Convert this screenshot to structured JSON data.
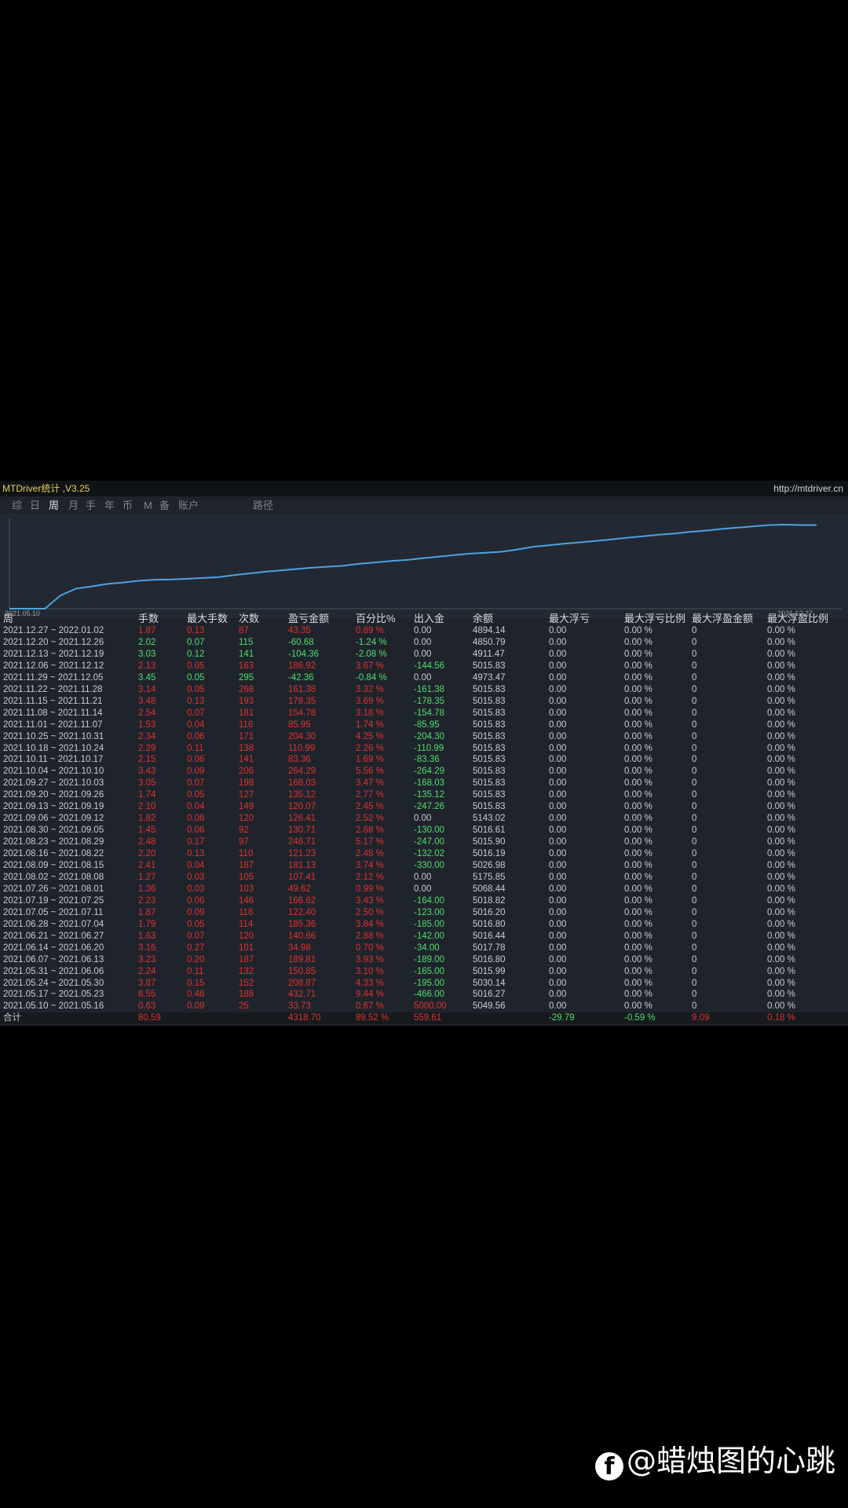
{
  "window": {
    "title": "MTDriver统计 ,V3.25",
    "url": "http://mtdriver.cn"
  },
  "tabs": [
    {
      "label": "综",
      "active": false
    },
    {
      "label": "日",
      "active": false
    },
    {
      "label": "周",
      "active": true
    },
    {
      "label": "月",
      "active": false
    },
    {
      "label": "手",
      "active": false
    },
    {
      "label": "年",
      "active": false
    },
    {
      "label": "币",
      "active": false
    },
    {
      "label": "M",
      "active": false
    },
    {
      "label": "备",
      "active": false
    },
    {
      "label": "账户",
      "active": false
    },
    {
      "label": "路径",
      "active": false
    }
  ],
  "chart_data": {
    "type": "line",
    "x_start_label": "2021.05.10",
    "x_end_label": "2021.12.27",
    "line_color": "#4aa3df",
    "values": [
      0,
      0,
      63,
      96,
      106,
      118,
      125,
      133,
      138,
      139,
      142,
      146,
      150,
      160,
      168,
      176,
      182,
      189,
      195,
      200,
      205,
      214,
      220,
      227,
      232,
      240,
      248,
      255,
      262,
      266,
      271,
      282,
      295,
      302,
      310,
      316,
      323,
      330,
      338,
      345,
      352,
      358,
      366,
      372,
      380,
      386,
      392,
      398,
      400,
      398,
      398
    ]
  },
  "table": {
    "headers": [
      "周",
      "手数",
      "最大手数",
      "次数",
      "盈亏金额",
      "百分比%",
      "出入金",
      "余额",
      "最大浮亏",
      "最大浮亏比例",
      "最大浮盈金额",
      "最大浮盈比例"
    ],
    "rows": [
      [
        "2021.12.27 ~ 2022.01.02",
        "1.87",
        "0.13",
        "87",
        "43.35",
        "0.89 %",
        "0.00",
        "4894.14",
        "0.00",
        "0.00 %",
        "0",
        "0.00 %"
      ],
      [
        "2021.12.20 ~ 2021.12.26",
        "2.02",
        "0.07",
        "115",
        "-60.68",
        "-1.24 %",
        "0.00",
        "4850.79",
        "0.00",
        "0.00 %",
        "0",
        "0.00 %"
      ],
      [
        "2021.12.13 ~ 2021.12.19",
        "3.03",
        "0.12",
        "141",
        "-104.36",
        "-2.08 %",
        "0.00",
        "4911.47",
        "0.00",
        "0.00 %",
        "0",
        "0.00 %"
      ],
      [
        "2021.12.06 ~ 2021.12.12",
        "2.13",
        "0.05",
        "163",
        "186.92",
        "3.67 %",
        "-144.56",
        "5015.83",
        "0.00",
        "0.00 %",
        "0",
        "0.00 %"
      ],
      [
        "2021.11.29 ~ 2021.12.05",
        "3.45",
        "0.05",
        "295",
        "-42.36",
        "-0.84 %",
        "0.00",
        "4973.47",
        "0.00",
        "0.00 %",
        "0",
        "0.00 %"
      ],
      [
        "2021.11.22 ~ 2021.11.28",
        "3.14",
        "0.05",
        "268",
        "161.38",
        "3.32 %",
        "-161.38",
        "5015.83",
        "0.00",
        "0.00 %",
        "0",
        "0.00 %"
      ],
      [
        "2021.11.15 ~ 2021.11.21",
        "3.48",
        "0.13",
        "193",
        "178.35",
        "3.69 %",
        "-178.35",
        "5015.83",
        "0.00",
        "0.00 %",
        "0",
        "0.00 %"
      ],
      [
        "2021.11.08 ~ 2021.11.14",
        "2.54",
        "0.07",
        "181",
        "154.78",
        "3.18 %",
        "-154.78",
        "5015.83",
        "0.00",
        "0.00 %",
        "0",
        "0.00 %"
      ],
      [
        "2021.11.01 ~ 2021.11.07",
        "1.53",
        "0.04",
        "116",
        "85.95",
        "1.74 %",
        "-85.95",
        "5015.83",
        "0.00",
        "0.00 %",
        "0",
        "0.00 %"
      ],
      [
        "2021.10.25 ~ 2021.10.31",
        "2.34",
        "0.06",
        "171",
        "204.30",
        "4.25 %",
        "-204.30",
        "5015.83",
        "0.00",
        "0.00 %",
        "0",
        "0.00 %"
      ],
      [
        "2021.10.18 ~ 2021.10.24",
        "2.29",
        "0.11",
        "138",
        "110.99",
        "2.26 %",
        "-110.99",
        "5015.83",
        "0.00",
        "0.00 %",
        "0",
        "0.00 %"
      ],
      [
        "2021.10.11 ~ 2021.10.17",
        "2.15",
        "0.06",
        "141",
        "83.36",
        "1.69 %",
        "-83.36",
        "5015.83",
        "0.00",
        "0.00 %",
        "0",
        "0.00 %"
      ],
      [
        "2021.10.04 ~ 2021.10.10",
        "3.43",
        "0.09",
        "206",
        "264.29",
        "5.56 %",
        "-264.29",
        "5015.83",
        "0.00",
        "0.00 %",
        "0",
        "0.00 %"
      ],
      [
        "2021.09.27 ~ 2021.10.03",
        "3.05",
        "0.07",
        "198",
        "168.03",
        "3.47 %",
        "-168.03",
        "5015.83",
        "0.00",
        "0.00 %",
        "0",
        "0.00 %"
      ],
      [
        "2021.09.20 ~ 2021.09.26",
        "1.74",
        "0.05",
        "127",
        "135.12",
        "2.77 %",
        "-135.12",
        "5015.83",
        "0.00",
        "0.00 %",
        "0",
        "0.00 %"
      ],
      [
        "2021.09.13 ~ 2021.09.19",
        "2.10",
        "0.04",
        "149",
        "120.07",
        "2.45 %",
        "-247.26",
        "5015.83",
        "0.00",
        "0.00 %",
        "0",
        "0.00 %"
      ],
      [
        "2021.09.06 ~ 2021.09.12",
        "1.82",
        "0.06",
        "120",
        "126.41",
        "2.52 %",
        "0.00",
        "5143.02",
        "0.00",
        "0.00 %",
        "0",
        "0.00 %"
      ],
      [
        "2021.08.30 ~ 2021.09.05",
        "1.45",
        "0.06",
        "92",
        "130.71",
        "2.68 %",
        "-130.00",
        "5016.61",
        "0.00",
        "0.00 %",
        "0",
        "0.00 %"
      ],
      [
        "2021.08.23 ~ 2021.08.29",
        "2.48",
        "0.17",
        "97",
        "246.71",
        "5.17 %",
        "-247.00",
        "5015.90",
        "0.00",
        "0.00 %",
        "0",
        "0.00 %"
      ],
      [
        "2021.08.16 ~ 2021.08.22",
        "2.20",
        "0.13",
        "110",
        "121.23",
        "2.48 %",
        "-132.02",
        "5016.19",
        "0.00",
        "0.00 %",
        "0",
        "0.00 %"
      ],
      [
        "2021.08.09 ~ 2021.08.15",
        "2.41",
        "0.04",
        "187",
        "181.13",
        "3.74 %",
        "-330.00",
        "5026.98",
        "0.00",
        "0.00 %",
        "0",
        "0.00 %"
      ],
      [
        "2021.08.02 ~ 2021.08.08",
        "1.27",
        "0.03",
        "105",
        "107.41",
        "2.12 %",
        "0.00",
        "5175.85",
        "0.00",
        "0.00 %",
        "0",
        "0.00 %"
      ],
      [
        "2021.07.26 ~ 2021.08.01",
        "1.36",
        "0.03",
        "103",
        "49.62",
        "0.99 %",
        "0.00",
        "5068.44",
        "0.00",
        "0.00 %",
        "0",
        "0.00 %"
      ],
      [
        "2021.07.19 ~ 2021.07.25",
        "2.23",
        "0.06",
        "146",
        "166.62",
        "3.43 %",
        "-164.00",
        "5018.82",
        "0.00",
        "0.00 %",
        "0",
        "0.00 %"
      ],
      [
        "2021.07.05 ~ 2021.07.11",
        "1.87",
        "0.09",
        "118",
        "122.40",
        "2.50 %",
        "-123.00",
        "5016.20",
        "0.00",
        "0.00 %",
        "0",
        "0.00 %"
      ],
      [
        "2021.06.28 ~ 2021.07.04",
        "1.79",
        "0.05",
        "114",
        "185.36",
        "3.84 %",
        "-185.00",
        "5016.80",
        "0.00",
        "0.00 %",
        "0",
        "0.00 %"
      ],
      [
        "2021.06.21 ~ 2021.06.27",
        "1.63",
        "0.07",
        "120",
        "140.66",
        "2.88 %",
        "-142.00",
        "5016.44",
        "0.00",
        "0.00 %",
        "0",
        "0.00 %"
      ],
      [
        "2021.06.14 ~ 2021.06.20",
        "3.16",
        "0.27",
        "101",
        "34.98",
        "0.70 %",
        "-34.00",
        "5017.78",
        "0.00",
        "0.00 %",
        "0",
        "0.00 %"
      ],
      [
        "2021.06.07 ~ 2021.06.13",
        "3.23",
        "0.20",
        "187",
        "189.81",
        "3.93 %",
        "-189.00",
        "5016.80",
        "0.00",
        "0.00 %",
        "0",
        "0.00 %"
      ],
      [
        "2021.05.31 ~ 2021.06.06",
        "2.24",
        "0.11",
        "132",
        "150.85",
        "3.10 %",
        "-165.00",
        "5015.99",
        "0.00",
        "0.00 %",
        "0",
        "0.00 %"
      ],
      [
        "2021.05.24 ~ 2021.05.30",
        "3.87",
        "0.15",
        "152",
        "208.87",
        "4.33 %",
        "-195.00",
        "5030.14",
        "0.00",
        "0.00 %",
        "0",
        "0.00 %"
      ],
      [
        "2021.05.17 ~ 2021.05.23",
        "8.55",
        "0.46",
        "188",
        "432.71",
        "9.44 %",
        "-466.00",
        "5016.27",
        "0.00",
        "0.00 %",
        "0",
        "0.00 %"
      ],
      [
        "2021.05.10 ~ 2021.05.16",
        "0.63",
        "0.09",
        "25",
        "33.73",
        "0.67 %",
        "5000.00",
        "5049.56",
        "0.00",
        "0.00 %",
        "0",
        "0.00 %"
      ]
    ],
    "total": [
      "合计",
      "80.59",
      "",
      "",
      "4318.70",
      "89.52 %",
      "559.61",
      "",
      "-29.79",
      "-0.59 %",
      "9.09",
      "0.18 %"
    ]
  },
  "watermark": {
    "logo": "f",
    "text": "@蜡烛图的心跳"
  }
}
